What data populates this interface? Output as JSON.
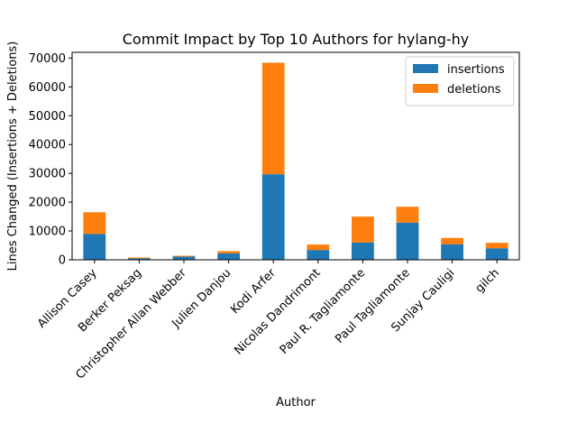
{
  "chart_data": {
    "type": "bar",
    "stacked": true,
    "title": "Commit Impact by Top 10 Authors for hylang-hy",
    "xlabel": "Author",
    "ylabel": "Lines Changed (Insertions + Deletions)",
    "categories": [
      "Allison Casey",
      "Berker Peksag",
      "Christopher Allan Webber",
      "Julien Danjou",
      "Kodi Arfer",
      "Nicolas Dandrimont",
      "Paul R. Tagliamonte",
      "Paul Tagliamonte",
      "Sunjay Cauligi",
      "gilch"
    ],
    "series": [
      {
        "name": "insertions",
        "color": "#1f77b4",
        "values": [
          9000,
          500,
          1100,
          2200,
          29700,
          3400,
          6000,
          12900,
          5400,
          4000
        ]
      },
      {
        "name": "deletions",
        "color": "#ff7f0e",
        "values": [
          7500,
          300,
          300,
          800,
          38700,
          1900,
          9000,
          5500,
          2200,
          1900
        ]
      }
    ],
    "ylim": [
      0,
      72000
    ],
    "yticks": [
      0,
      10000,
      20000,
      30000,
      40000,
      50000,
      60000,
      70000
    ],
    "legend_position": "top-right",
    "grid": false
  }
}
